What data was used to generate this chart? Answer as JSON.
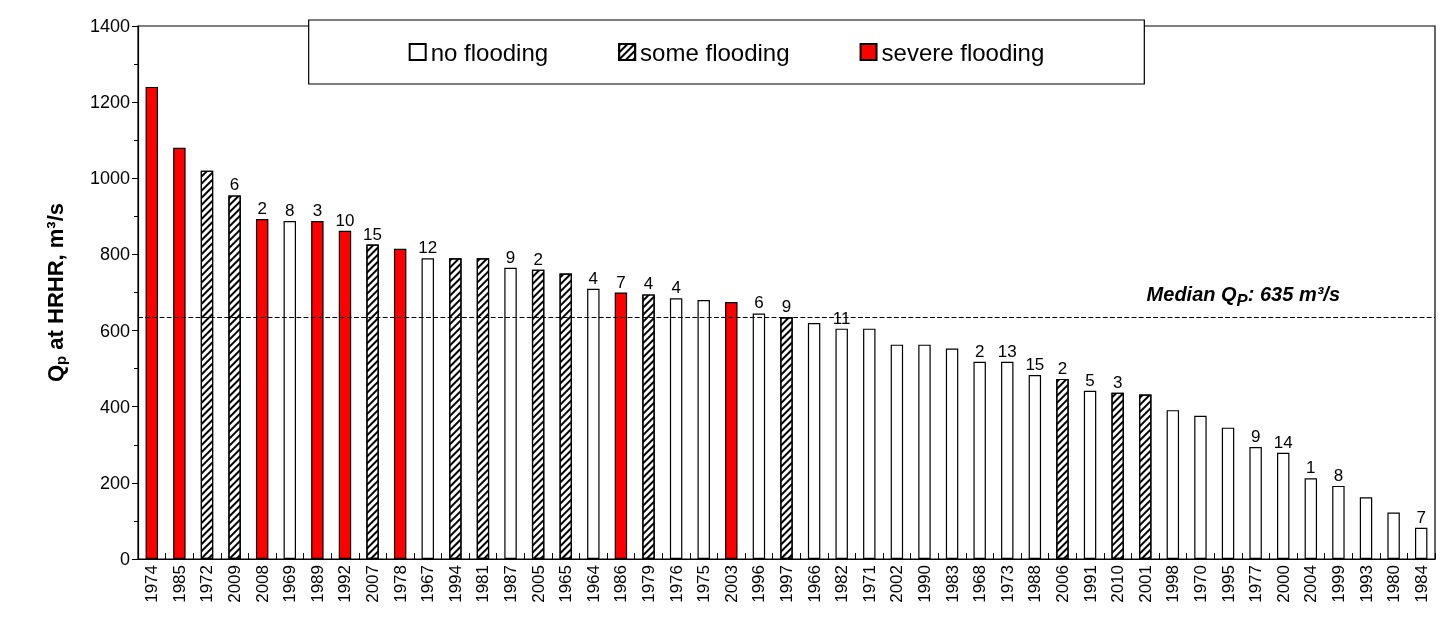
{
  "chart_data": {
    "type": "bar",
    "ylabel": "Q$_{p}$ at HRHR, m³/s",
    "stacked": true,
    "legend": "top",
    "grid": false,
    "categories": [
      "1974",
      "1985",
      "1972",
      "2009",
      "2008",
      "1969",
      "1989",
      "1992",
      "2007",
      "1978",
      "1967",
      "1994",
      "1981",
      "1987",
      "2005",
      "1965",
      "1964",
      "1986",
      "1979",
      "1976",
      "1975",
      "2003",
      "1996",
      "1997",
      "1966",
      "1982",
      "1971",
      "2002",
      "1990",
      "1983",
      "1968",
      "1973",
      "1988",
      "2006",
      "1991",
      "2010",
      "2001",
      "1998",
      "1970",
      "1995",
      "1977",
      "2000",
      "2004",
      "1999",
      "1993",
      "1980",
      "1984"
    ],
    "ylim": [
      0,
      1400
    ],
    "yticks": [
      0,
      200,
      400,
      600,
      800,
      1000,
      1200,
      1400
    ],
    "series": [
      {
        "name": "no flooding",
        "color": "#ffffff",
        "values": [
          null,
          null,
          null,
          null,
          null,
          888,
          null,
          null,
          null,
          null,
          790,
          null,
          null,
          765,
          null,
          null,
          710,
          null,
          null,
          685,
          680,
          null,
          645,
          null,
          620,
          605,
          605,
          563,
          563,
          553,
          518,
          518,
          483,
          null,
          442,
          null,
          null,
          391,
          376,
          345,
          294,
          279,
          212,
          192,
          162,
          122,
          82
        ]
      },
      {
        "name": "some flooding",
        "color": "#000000",
        "values": [
          null,
          null,
          1020,
          955,
          null,
          null,
          null,
          null,
          826,
          null,
          null,
          790,
          790,
          null,
          760,
          750,
          null,
          null,
          695,
          null,
          null,
          null,
          null,
          635,
          null,
          null,
          null,
          null,
          null,
          null,
          null,
          null,
          null,
          473,
          null,
          437,
          432,
          null,
          null,
          null,
          null,
          null,
          null,
          null,
          null,
          null,
          null
        ]
      },
      {
        "name": "severe flooding",
        "color": "#ff0000",
        "values": [
          1240,
          1080,
          null,
          null,
          893,
          null,
          888,
          862,
          null,
          815,
          null,
          null,
          null,
          null,
          null,
          null,
          null,
          700,
          null,
          null,
          null,
          675,
          null,
          null,
          null,
          null,
          null,
          null,
          null,
          null,
          null,
          null,
          null,
          null,
          null,
          null,
          null,
          null,
          null,
          null,
          null,
          null,
          null,
          null,
          null,
          null,
          null
        ]
      }
    ],
    "annotations": [
      {
        "text": "6",
        "x": "2009",
        "y": 955
      },
      {
        "text": "2",
        "x": "2008",
        "y": 893
      },
      {
        "text": "8",
        "x": "1969",
        "y": 888
      },
      {
        "text": "3",
        "x": "1989",
        "y": 888
      },
      {
        "text": "10",
        "x": "1992",
        "y": 862
      },
      {
        "text": "15",
        "x": "2007",
        "y": 826
      },
      {
        "text": "12",
        "x": "1967",
        "y": 790
      },
      {
        "text": "9",
        "x": "1987",
        "y": 765
      },
      {
        "text": "2",
        "x": "2005",
        "y": 760
      },
      {
        "text": "4",
        "x": "1964",
        "y": 710
      },
      {
        "text": "7",
        "x": "1986",
        "y": 700
      },
      {
        "text": "4",
        "x": "1979",
        "y": 695
      },
      {
        "text": "4",
        "x": "1976",
        "y": 685
      },
      {
        "text": "6",
        "x": "1996",
        "y": 645
      },
      {
        "text": "9",
        "x": "1997",
        "y": 635
      },
      {
        "text": "11",
        "x": "1982",
        "y": 605
      },
      {
        "text": "2",
        "x": "1968",
        "y": 518
      },
      {
        "text": "13",
        "x": "1973",
        "y": 518
      },
      {
        "text": "15",
        "x": "1988",
        "y": 483
      },
      {
        "text": "2",
        "x": "2006",
        "y": 473
      },
      {
        "text": "5",
        "x": "1991",
        "y": 442
      },
      {
        "text": "3",
        "x": "2010",
        "y": 437
      },
      {
        "text": "9",
        "x": "1977",
        "y": 294
      },
      {
        "text": "14",
        "x": "2000",
        "y": 279
      },
      {
        "text": "1",
        "x": "2004",
        "y": 212
      },
      {
        "text": "8",
        "x": "1999",
        "y": 192
      },
      {
        "text": "7",
        "x": "1984",
        "y": 82
      }
    ],
    "ref_lines": [
      {
        "axis": "y",
        "value": 635,
        "label": "Median Q$_{P}$: 635 m³/s",
        "line_style": "dashed",
        "color": "#000000"
      }
    ]
  }
}
